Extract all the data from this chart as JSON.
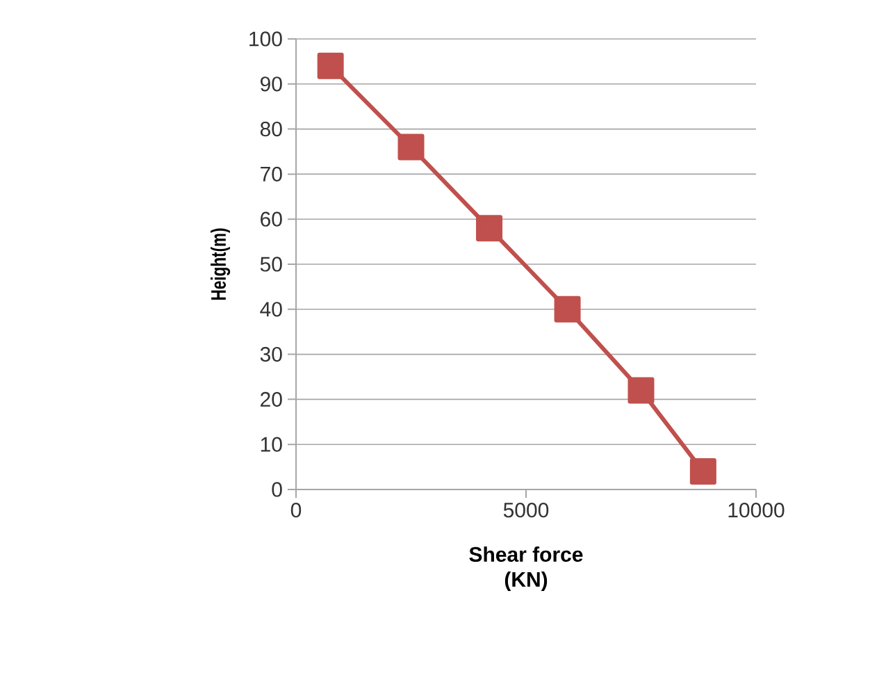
{
  "chart_data": {
    "type": "line",
    "xlabel": "Shear force\n(KN)",
    "ylabel": "Height(m)",
    "x": [
      750,
      2500,
      4200,
      5900,
      7500,
      8850
    ],
    "series": [
      {
        "color": "#c0504d",
        "values": [
          94,
          76,
          58,
          40,
          22,
          4
        ]
      }
    ],
    "xlim": [
      0,
      10000
    ],
    "xticks": [
      0,
      5000,
      10000
    ],
    "ylim": [
      0,
      100
    ],
    "yticks": [
      0,
      10,
      20,
      30,
      40,
      50,
      60,
      70,
      80,
      90,
      100
    ],
    "grid": "y",
    "marker": "square",
    "line_style": "solid"
  }
}
